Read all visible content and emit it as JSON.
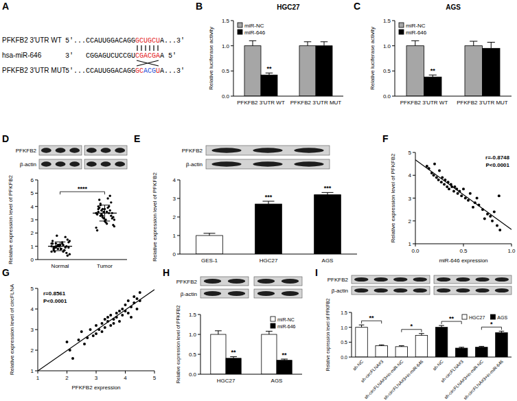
{
  "panel_labels": [
    "A",
    "B",
    "C",
    "D",
    "E",
    "F",
    "G",
    "H",
    "I"
  ],
  "sequence_diagram": {
    "rows": [
      {
        "label": "PFKFB2 3'UTR WT",
        "segments": [
          {
            "text": "5'...CCAUUGGACAGG",
            "color": "#000000"
          },
          {
            "text": "GCUGCU",
            "color": "#e3211c"
          },
          {
            "text": "A...3'",
            "color": "#000000"
          }
        ]
      },
      {
        "label": "hsa-miR-646",
        "segments": [
          {
            "text": "3'   CGGAGUCUCCGU",
            "color": "#000000"
          },
          {
            "text": "CGACGA",
            "color": "#e3211c"
          },
          {
            "text": "A 5'",
            "color": "#000000"
          }
        ]
      },
      {
        "label": "PFKFB2 3'UTR MUT",
        "segments": [
          {
            "text": "5'...CCAUUGGACAGG",
            "color": "#000000"
          },
          {
            "text": "GC",
            "color": "#e3211c"
          },
          {
            "text": "ACG",
            "color": "#1f4fd8"
          },
          {
            "text": "U",
            "color": "#e3211c"
          },
          {
            "text": "A...3'",
            "color": "#000000"
          }
        ]
      }
    ]
  },
  "blots": [
    {
      "labels": [
        "PFKFB2",
        "β-actin"
      ]
    },
    {
      "labels": [
        "PFKFB2",
        "β-actin"
      ]
    },
    {
      "labels": [
        "PFKFB2",
        "β-actin"
      ]
    },
    {
      "labels": [
        "PFKFB2",
        "β-actin"
      ]
    }
  ],
  "chart_data": [
    {
      "type": "bar",
      "title": "HGC27",
      "categories": [
        "PFKFB2 3'UTR WT",
        "PFKFB2 3'UTR MUT"
      ],
      "series": [
        {
          "name": "miR-NC",
          "color": "#a6a6a6",
          "values": [
            1.0,
            1.0
          ],
          "errors": [
            0.1,
            0.08
          ]
        },
        {
          "name": "miR-646",
          "color": "#000000",
          "values": [
            0.42,
            1.0
          ],
          "errors": [
            0.04,
            0.08
          ]
        }
      ],
      "y_label": "Relative luciferase activity",
      "ylim": [
        0,
        1.5
      ],
      "yticks": [
        {
          "value": 0,
          "label": "0.0"
        },
        0.5,
        {
          "value": 1,
          "label": "1.0"
        },
        1.5
      ],
      "legend": "top-left",
      "annotations": [
        {
          "text": "**",
          "category": 0,
          "series": 1
        }
      ]
    },
    {
      "type": "bar",
      "title": "AGS",
      "categories": [
        "PFKFB2 3'UTR WT",
        "PFKFB2 3'UTR MUT"
      ],
      "series": [
        {
          "name": "miR-NC",
          "color": "#a6a6a6",
          "values": [
            1.0,
            1.0
          ],
          "errors": [
            0.1,
            0.09
          ]
        },
        {
          "name": "miR-646",
          "color": "#000000",
          "values": [
            0.38,
            0.95
          ],
          "errors": [
            0.04,
            0.12
          ]
        }
      ],
      "y_label": "Relative luciferase activity",
      "ylim": [
        0,
        1.5
      ],
      "yticks": [
        {
          "value": 0,
          "label": "0.0"
        },
        0.5,
        {
          "value": 1,
          "label": "1.0"
        },
        1.5
      ],
      "legend": "top-left",
      "annotations": [
        {
          "text": "**",
          "category": 0,
          "series": 1
        }
      ]
    },
    {
      "type": "strip",
      "categories": [
        "Normal",
        "Tumor"
      ],
      "values": [
        [
          0.6,
          0.8,
          0.9,
          1.0,
          1.1,
          1.2,
          0.7,
          0.5,
          1.3,
          1.4,
          0.9,
          1.0,
          1.1,
          0.8,
          0.6,
          1.7,
          1.5,
          0.4,
          1.2,
          0.9,
          1.0,
          0.8,
          1.1,
          1.3,
          0.7,
          1.0,
          0.9,
          1.2,
          0.6,
          1.8,
          1.0,
          0.8,
          1.1,
          0.9,
          0.3,
          1.4,
          1.0,
          0.7,
          1.2,
          1.1
        ],
        [
          3.5,
          3.8,
          4.2,
          3.2,
          2.9,
          3.6,
          4.0,
          3.3,
          2.6,
          3.4,
          4.5,
          3.7,
          3.1,
          2.8,
          3.9,
          4.8,
          3.5,
          3.0,
          2.4,
          3.6,
          4.1,
          3.3,
          3.8,
          2.7,
          3.5,
          4.3,
          3.2,
          2.2,
          3.9,
          3.4,
          3.6,
          3.0,
          4.6,
          3.7,
          3.1,
          2.5,
          3.5,
          4.0,
          3.3,
          3.8
        ]
      ],
      "mean": [
        1.0,
        3.5
      ],
      "sd": [
        0.33,
        0.6
      ],
      "y_label": "Relative expression level of PFKFB2",
      "ylim": [
        0,
        6
      ],
      "yticks": [
        0,
        1,
        2,
        3,
        4,
        5,
        6
      ],
      "annotations": [
        {
          "text": "****",
          "from": 0,
          "to": 1
        }
      ]
    },
    {
      "type": "bar",
      "categories": [
        "GES-1",
        "HGC27",
        "AGS"
      ],
      "values": [
        1.0,
        2.7,
        3.2
      ],
      "errors": [
        0.12,
        0.15,
        0.12
      ],
      "colors": [
        "#ffffff",
        "#000000",
        "#000000"
      ],
      "y_label": "Relative expression level of PFKFB2",
      "ylim": [
        0,
        4
      ],
      "yticks": [
        0,
        1,
        2,
        3,
        4
      ],
      "annotations": [
        {
          "text": "***",
          "category": 1
        },
        {
          "text": "***",
          "category": 2
        }
      ]
    },
    {
      "type": "scatter",
      "x": [
        0.12,
        0.14,
        0.17,
        0.19,
        0.2,
        0.22,
        0.24,
        0.25,
        0.27,
        0.28,
        0.3,
        0.31,
        0.33,
        0.34,
        0.35,
        0.37,
        0.38,
        0.4,
        0.41,
        0.43,
        0.44,
        0.46,
        0.48,
        0.5,
        0.52,
        0.55,
        0.57,
        0.6,
        0.62,
        0.64,
        0.66,
        0.7,
        0.72,
        0.75,
        0.78,
        0.8,
        0.82,
        0.85,
        0.87,
        0.88
      ],
      "values": [
        4.4,
        4.3,
        4.1,
        4.0,
        4.5,
        3.9,
        3.8,
        4.2,
        3.7,
        3.9,
        3.6,
        3.8,
        3.5,
        3.7,
        3.4,
        3.6,
        3.5,
        3.3,
        3.5,
        3.4,
        3.2,
        3.3,
        3.1,
        3.4,
        3.0,
        2.9,
        3.2,
        2.6,
        2.8,
        3.0,
        2.7,
        2.5,
        2.1,
        2.3,
        2.2,
        2.0,
        2.4,
        1.8,
        3.1,
        1.6
      ],
      "x_label": "miR-646 expression",
      "y_label": "Relative expression level of PFKFB2",
      "xlim": [
        0,
        1
      ],
      "xticks": [
        {
          "value": 0,
          "label": "0.0"
        },
        0.5,
        {
          "value": 1,
          "label": "1.0"
        }
      ],
      "ylim": [
        1,
        5
      ],
      "yticks": [
        1,
        2,
        3,
        4,
        5
      ],
      "annotations": [
        {
          "text": "r=-0.8748"
        },
        {
          "text": "P<0.0001"
        }
      ]
    },
    {
      "type": "scatter",
      "x": [
        2.0,
        2.1,
        2.2,
        2.4,
        2.5,
        2.6,
        2.7,
        2.8,
        2.9,
        3.0,
        3.0,
        3.1,
        3.2,
        3.2,
        3.3,
        3.3,
        3.4,
        3.4,
        3.5,
        3.5,
        3.6,
        3.6,
        3.7,
        3.7,
        3.8,
        3.8,
        3.9,
        3.9,
        4.0,
        4.0,
        4.1,
        4.1,
        4.2,
        4.2,
        4.3,
        4.3,
        4.4,
        4.4,
        4.5,
        4.5
      ],
      "values": [
        2.4,
        2.0,
        1.6,
        2.5,
        2.9,
        2.3,
        2.6,
        3.0,
        2.7,
        3.2,
        2.8,
        3.0,
        3.3,
        2.9,
        3.5,
        3.1,
        3.4,
        3.6,
        3.2,
        3.7,
        3.5,
        3.3,
        3.8,
        3.6,
        3.9,
        3.4,
        4.0,
        3.7,
        3.9,
        4.2,
        3.8,
        4.4,
        4.1,
        3.6,
        4.6,
        4.3,
        4.5,
        4.0,
        4.8,
        4.4
      ],
      "x_label": "PFKFB2 expression",
      "y_label": "Relative expression level of circFLNA",
      "xlim": [
        1,
        5
      ],
      "xticks": [
        1,
        2,
        3,
        4,
        5
      ],
      "ylim": [
        1,
        5
      ],
      "yticks": [
        1,
        2,
        3,
        4,
        5
      ],
      "annotations": [
        {
          "text": "r=0.8561"
        },
        {
          "text": "P<0.0001"
        }
      ]
    },
    {
      "type": "bar",
      "categories": [
        "HGC27",
        "AGS"
      ],
      "series": [
        {
          "name": "miR-NC",
          "color": "#ffffff",
          "values": [
            1.0,
            1.0
          ],
          "errors": [
            0.09,
            0.08
          ]
        },
        {
          "name": "miR-646",
          "color": "#000000",
          "values": [
            0.4,
            0.35
          ],
          "errors": [
            0.04,
            0.03
          ]
        }
      ],
      "y_label": "Relative expression level of PFKFB2",
      "ylim": [
        0,
        1.5
      ],
      "yticks": [
        {
          "value": 0,
          "label": "0.0"
        },
        0.5,
        {
          "value": 1,
          "label": "1.0"
        },
        1.5
      ],
      "legend": "top-right",
      "annotations": [
        {
          "text": "**",
          "category": 0,
          "series": 1
        },
        {
          "text": "**",
          "category": 1,
          "series": 1
        }
      ]
    },
    {
      "type": "bar",
      "categories": [
        "sh-NC",
        "sh-circFLNA#3",
        "sh-circFLNA#3+in-miR-NC",
        "sh-circFLNA#3+in-miR-646",
        "sh-NC",
        "sh-circFLNA#3",
        "sh-circFLNA#3+in-miR-NC",
        "sh-circFLNA#3+in-miR-646"
      ],
      "series": [
        {
          "name": "HGC27",
          "color": "#ffffff",
          "values": [
            1.0,
            0.38,
            0.35,
            0.73,
            null,
            null,
            null,
            null
          ],
          "errors": [
            0.08,
            0.03,
            0.03,
            0.06,
            null,
            null,
            null,
            null
          ]
        },
        {
          "name": "AGS",
          "color": "#000000",
          "values": [
            null,
            null,
            null,
            null,
            1.0,
            0.3,
            0.33,
            0.82
          ],
          "errors": [
            null,
            null,
            null,
            null,
            0.06,
            0.03,
            0.03,
            0.05
          ]
        }
      ],
      "y_label": "Relative expression level of PFKFB2",
      "ylim": [
        0,
        1.5
      ],
      "yticks": [
        {
          "value": 0,
          "label": "0.0"
        },
        0.5,
        {
          "value": 1,
          "label": "1.0"
        },
        1.5
      ],
      "legend": "top-right",
      "annotations": [
        {
          "text": "**",
          "from": 0,
          "to": 1
        },
        {
          "text": "*",
          "from": 2,
          "to": 3
        },
        {
          "text": "**",
          "from": 4,
          "to": 5
        },
        {
          "text": "*",
          "from": 6,
          "to": 7
        }
      ]
    }
  ]
}
